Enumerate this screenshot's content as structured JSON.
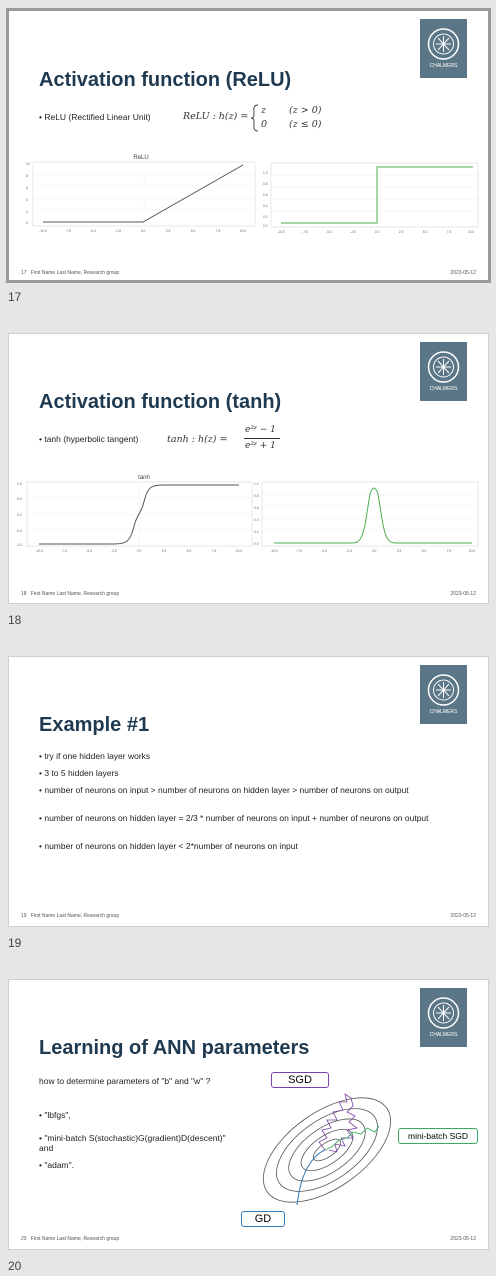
{
  "footer": {
    "author": "First Name Last Name, Research group",
    "date": "2023-05-12"
  },
  "logo": {
    "text": "CHALMERS"
  },
  "slides": [
    {
      "number": "17",
      "title": "Activation function (ReLU)",
      "bullet": "ReLU (Rectified Linear Unit)",
      "formula": {
        "lhs": "ReLU : h(z) =",
        "case1_val": "z",
        "case1_cond": "(z > 0)",
        "case2_val": "0",
        "case2_cond": "(z ≤ 0)"
      },
      "left_plot_title": "ReLU",
      "left_y_ticks": [
        "10",
        "8",
        "6",
        "4",
        "2",
        "0"
      ],
      "right_y_ticks": [
        "1.0",
        "0.8",
        "0.6",
        "0.4",
        "0.2",
        "0.0"
      ],
      "x_ticks": [
        "-10.0",
        "-7.5",
        "-5.0",
        "-2.5",
        "0.0",
        "2.5",
        "5.0",
        "7.5",
        "10.0"
      ]
    },
    {
      "number": "18",
      "title": "Activation function (tanh)",
      "bullet": "tanh (hyperbolic tangent)",
      "formula": {
        "lhs": "tanh : h(z) =",
        "num": "e²ᶻ − 1",
        "den": "e²ᶻ + 1"
      },
      "left_plot_title": "tanh",
      "left_y_ticks": [
        "1.0",
        "0.5",
        "0.0",
        "-0.5",
        "-1.0"
      ],
      "right_y_ticks": [
        "1.0",
        "0.8",
        "0.6",
        "0.4",
        "0.2",
        "0.0"
      ],
      "x_ticks": [
        "-10.0",
        "-7.5",
        "-5.0",
        "-2.5",
        "0.0",
        "2.5",
        "5.0",
        "7.5",
        "10.0"
      ]
    },
    {
      "number": "19",
      "title": "Example #1",
      "bullets": [
        "try if one hidden layer works",
        "3 to 5 hidden layers",
        "number of neurons on input > number of neurons on hidden layer > number of neurons on output",
        "number of neurons on hidden layer = 2/3 * number of neurons on input + number of neurons on output",
        "number of neurons on hidden layer < 2*number of neurons on input"
      ]
    },
    {
      "number": "20",
      "title": "Learning of ANN parameters",
      "intro": "how to determine parameters of \"b\" and \"w\" ?",
      "bullets": [
        "\"lbfgs\",",
        "\"mini-batch S(stochastic)G(gradient)D(descent)\" and",
        "\"adam\"."
      ],
      "labels": {
        "sgd": "SGD",
        "minibatch": "mini-batch SGD",
        "gd": "GD"
      },
      "colors": {
        "sgd": "#7b3fa5",
        "minibatch": "#3aaa5c",
        "gd": "#2f78b7"
      }
    }
  ]
}
